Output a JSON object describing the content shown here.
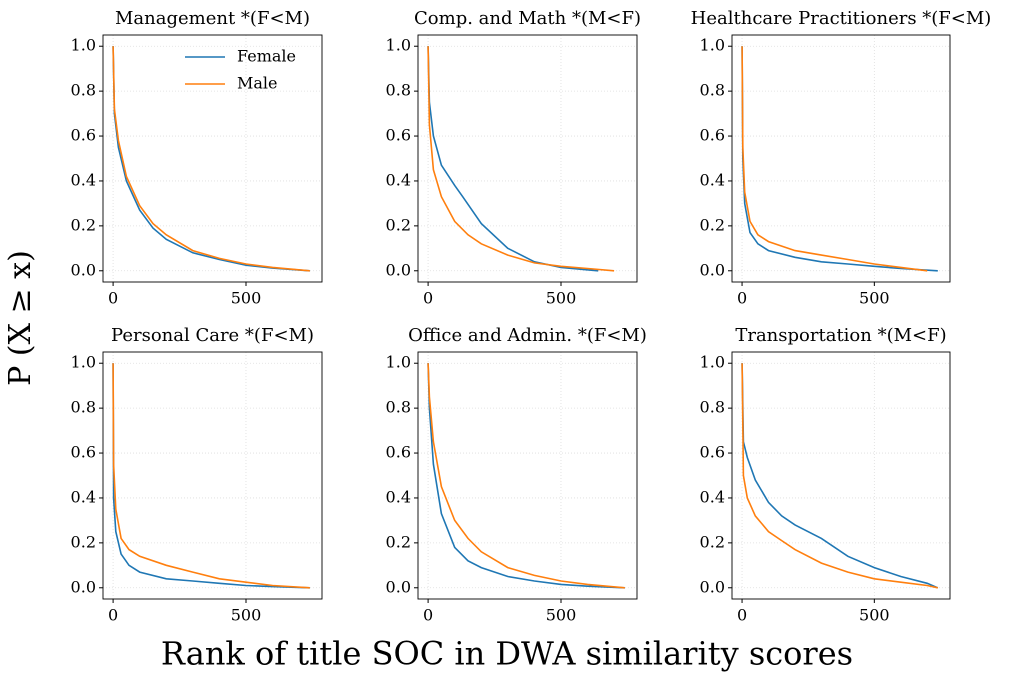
{
  "figure": {
    "xlabel": "Rank of title SOC in DWA similarity scores",
    "ylabel": "P (X ≥ x)"
  },
  "chart_data": [
    {
      "type": "line",
      "title": "Management *(F<M)",
      "legend": "upper right",
      "grid": true,
      "xlim": [
        -38,
        786
      ],
      "ylim": [
        -0.05,
        1.05
      ],
      "xticks": [
        0,
        500
      ],
      "yticks": [
        {
          "value": 0,
          "label": "0.0"
        },
        0.2,
        0.4,
        0.6,
        0.8,
        {
          "value": 1,
          "label": "1.0"
        }
      ],
      "series": [
        {
          "name": "Female",
          "color": "#1f77b4",
          "x": [
            0,
            5,
            20,
            50,
            100,
            150,
            200,
            300,
            400,
            500,
            600,
            740
          ],
          "values": [
            1.0,
            0.7,
            0.55,
            0.4,
            0.27,
            0.19,
            0.14,
            0.08,
            0.05,
            0.025,
            0.012,
            0.0
          ]
        },
        {
          "name": "Male",
          "color": "#ff7f0e",
          "x": [
            0,
            5,
            20,
            50,
            100,
            150,
            200,
            300,
            400,
            500,
            600,
            740
          ],
          "values": [
            1.0,
            0.72,
            0.58,
            0.42,
            0.29,
            0.21,
            0.16,
            0.09,
            0.055,
            0.03,
            0.015,
            0.0
          ]
        }
      ]
    },
    {
      "type": "line",
      "title": "Comp. and Math *(M<F)",
      "grid": true,
      "xlim": [
        -38,
        786
      ],
      "ylim": [
        -0.05,
        1.05
      ],
      "xticks": [
        0,
        500
      ],
      "yticks": [
        {
          "value": 0,
          "label": "0.0"
        },
        0.2,
        0.4,
        0.6,
        0.8,
        {
          "value": 1,
          "label": "1.0"
        }
      ],
      "series": [
        {
          "name": "Female",
          "color": "#1f77b4",
          "x": [
            0,
            5,
            20,
            50,
            100,
            130,
            200,
            300,
            400,
            500,
            640
          ],
          "values": [
            1.0,
            0.75,
            0.6,
            0.47,
            0.38,
            0.33,
            0.21,
            0.1,
            0.04,
            0.015,
            0.0
          ]
        },
        {
          "name": "Male",
          "color": "#ff7f0e",
          "x": [
            0,
            5,
            20,
            50,
            100,
            150,
            200,
            300,
            400,
            500,
            600,
            700
          ],
          "values": [
            1.0,
            0.65,
            0.45,
            0.33,
            0.22,
            0.16,
            0.12,
            0.07,
            0.035,
            0.02,
            0.01,
            0.0
          ]
        }
      ]
    },
    {
      "type": "line",
      "title": "Healthcare Practitioners *(F<M)",
      "grid": true,
      "xlim": [
        -38,
        786
      ],
      "ylim": [
        -0.05,
        1.05
      ],
      "xticks": [
        0,
        500
      ],
      "yticks": [
        {
          "value": 0,
          "label": "0.0"
        },
        0.2,
        0.4,
        0.6,
        0.8,
        {
          "value": 1,
          "label": "1.0"
        }
      ],
      "series": [
        {
          "name": "Female",
          "color": "#1f77b4",
          "x": [
            0,
            3,
            10,
            30,
            60,
            100,
            200,
            300,
            400,
            500,
            600,
            740
          ],
          "values": [
            1.0,
            0.5,
            0.3,
            0.17,
            0.12,
            0.09,
            0.06,
            0.04,
            0.03,
            0.02,
            0.01,
            0.0
          ]
        },
        {
          "name": "Male",
          "color": "#ff7f0e",
          "x": [
            0,
            3,
            10,
            30,
            60,
            100,
            200,
            300,
            400,
            500,
            600,
            700
          ],
          "values": [
            1.0,
            0.55,
            0.35,
            0.22,
            0.16,
            0.13,
            0.09,
            0.07,
            0.05,
            0.03,
            0.015,
            0.0
          ]
        }
      ]
    },
    {
      "type": "line",
      "title": "Personal Care  *(F<M)",
      "grid": true,
      "xlim": [
        -38,
        786
      ],
      "ylim": [
        -0.05,
        1.05
      ],
      "xticks": [
        0,
        500
      ],
      "yticks": [
        {
          "value": 0,
          "label": "0.0"
        },
        0.2,
        0.4,
        0.6,
        0.8,
        {
          "value": 1,
          "label": "1.0"
        }
      ],
      "series": [
        {
          "name": "Female",
          "color": "#1f77b4",
          "x": [
            0,
            2,
            10,
            30,
            60,
            100,
            200,
            300,
            400,
            500,
            600,
            740
          ],
          "values": [
            1.0,
            0.4,
            0.25,
            0.15,
            0.1,
            0.07,
            0.04,
            0.03,
            0.02,
            0.01,
            0.005,
            0.0
          ]
        },
        {
          "name": "Male",
          "color": "#ff7f0e",
          "x": [
            0,
            2,
            10,
            30,
            60,
            100,
            200,
            300,
            400,
            500,
            600,
            740
          ],
          "values": [
            1.0,
            0.55,
            0.35,
            0.22,
            0.17,
            0.14,
            0.1,
            0.07,
            0.04,
            0.025,
            0.01,
            0.0
          ]
        }
      ]
    },
    {
      "type": "line",
      "title": "Office and Admin. *(F<M)",
      "grid": true,
      "xlim": [
        -38,
        786
      ],
      "ylim": [
        -0.05,
        1.05
      ],
      "xticks": [
        0,
        500
      ],
      "yticks": [
        {
          "value": 0,
          "label": "0.0"
        },
        0.2,
        0.4,
        0.6,
        0.8,
        {
          "value": 1,
          "label": "1.0"
        }
      ],
      "series": [
        {
          "name": "Female",
          "color": "#1f77b4",
          "x": [
            0,
            5,
            20,
            50,
            100,
            150,
            200,
            300,
            400,
            500,
            600,
            740
          ],
          "values": [
            1.0,
            0.8,
            0.55,
            0.33,
            0.18,
            0.12,
            0.09,
            0.05,
            0.03,
            0.015,
            0.007,
            0.0
          ]
        },
        {
          "name": "Male",
          "color": "#ff7f0e",
          "x": [
            0,
            5,
            20,
            50,
            100,
            150,
            200,
            300,
            400,
            500,
            600,
            740
          ],
          "values": [
            1.0,
            0.85,
            0.65,
            0.45,
            0.3,
            0.22,
            0.16,
            0.09,
            0.055,
            0.03,
            0.015,
            0.0
          ]
        }
      ]
    },
    {
      "type": "line",
      "title": "Transportation *(M<F)",
      "grid": true,
      "xlim": [
        -38,
        786
      ],
      "ylim": [
        -0.05,
        1.05
      ],
      "xticks": [
        0,
        500
      ],
      "yticks": [
        {
          "value": 0,
          "label": "0.0"
        },
        0.2,
        0.4,
        0.6,
        0.8,
        {
          "value": 1,
          "label": "1.0"
        }
      ],
      "series": [
        {
          "name": "Female",
          "color": "#1f77b4",
          "x": [
            0,
            5,
            20,
            50,
            100,
            150,
            200,
            300,
            400,
            500,
            600,
            700,
            740
          ],
          "values": [
            1.0,
            0.65,
            0.58,
            0.48,
            0.38,
            0.32,
            0.28,
            0.22,
            0.14,
            0.09,
            0.05,
            0.02,
            0.0
          ]
        },
        {
          "name": "Male",
          "color": "#ff7f0e",
          "x": [
            0,
            5,
            20,
            50,
            100,
            150,
            200,
            300,
            400,
            500,
            600,
            700,
            740
          ],
          "values": [
            1.0,
            0.5,
            0.4,
            0.32,
            0.25,
            0.21,
            0.17,
            0.11,
            0.07,
            0.04,
            0.025,
            0.01,
            0.0
          ]
        }
      ]
    }
  ]
}
